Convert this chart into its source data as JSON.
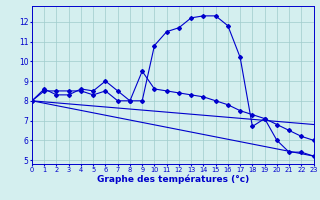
{
  "xlabel": "Graphe des températures (°c)",
  "xlim": [
    0,
    23
  ],
  "ylim": [
    4.8,
    12.8
  ],
  "yticks": [
    5,
    6,
    7,
    8,
    9,
    10,
    11,
    12
  ],
  "xticks": [
    0,
    1,
    2,
    3,
    4,
    5,
    6,
    7,
    8,
    9,
    10,
    11,
    12,
    13,
    14,
    15,
    16,
    17,
    18,
    19,
    20,
    21,
    22,
    23
  ],
  "background_color": "#d4efef",
  "grid_color": "#a0cccc",
  "line_color": "#0000cc",
  "line1_x": [
    0,
    1,
    2,
    3,
    4,
    5,
    6,
    7,
    8,
    9,
    10,
    11,
    12,
    13,
    14,
    15,
    16,
    17,
    18,
    19,
    20,
    21,
    22,
    23
  ],
  "line1_y": [
    8.0,
    8.6,
    8.3,
    8.3,
    8.6,
    8.5,
    9.0,
    8.5,
    8.0,
    8.0,
    10.8,
    11.5,
    11.7,
    12.2,
    12.3,
    12.3,
    11.8,
    10.2,
    6.7,
    7.1,
    6.0,
    5.4,
    5.4,
    5.2
  ],
  "line2_x": [
    0,
    1,
    2,
    3,
    4,
    5,
    6,
    7,
    8,
    9,
    10,
    11,
    12,
    13,
    14,
    15,
    16,
    17,
    18,
    19,
    20,
    21,
    22,
    23
  ],
  "line2_y": [
    8.0,
    8.5,
    8.5,
    8.5,
    8.5,
    8.3,
    8.5,
    8.0,
    8.0,
    9.5,
    8.6,
    8.5,
    8.4,
    8.3,
    8.2,
    8.0,
    7.8,
    7.5,
    7.3,
    7.1,
    6.8,
    6.5,
    6.2,
    6.0
  ],
  "line3_x": [
    0,
    23
  ],
  "line3_y": [
    8.0,
    6.8
  ],
  "line4_x": [
    0,
    23
  ],
  "line4_y": [
    8.0,
    5.2
  ]
}
